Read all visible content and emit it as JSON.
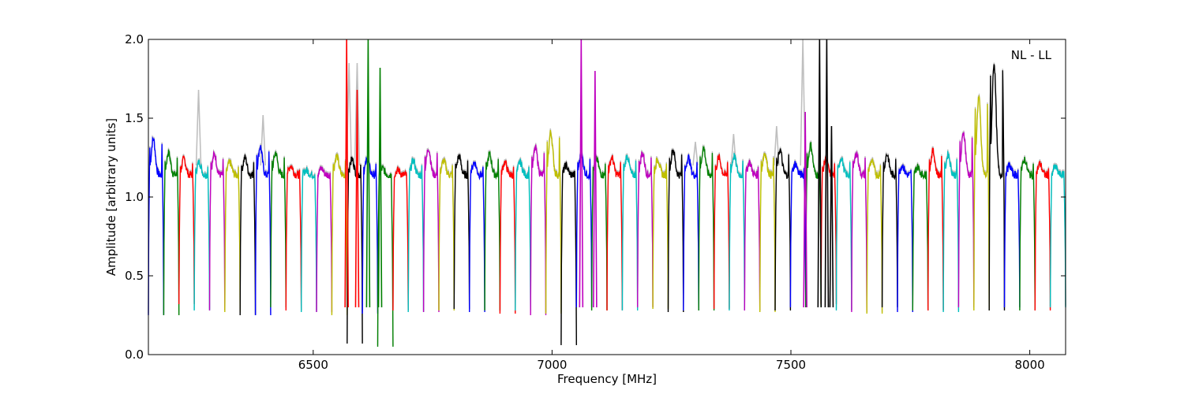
{
  "chart_data": {
    "type": "line",
    "title": "",
    "xlabel": "Frequency [MHz]",
    "ylabel": "Amplitude [arbitrary units]",
    "annotation": "NL - LL",
    "xlim": [
      6155,
      8075
    ],
    "ylim": [
      0.0,
      2.0
    ],
    "xticks": [
      6500,
      7000,
      7500,
      8000
    ],
    "xtick_labels": [
      "6500",
      "7000",
      "7500",
      "8000"
    ],
    "yticks": [
      0.0,
      0.5,
      1.0,
      1.5,
      2.0
    ],
    "ytick_labels": [
      "0.0",
      "0.5",
      "1.0",
      "1.5",
      "2.0"
    ],
    "grid": false,
    "legend": "none",
    "colors": [
      "#0000ff",
      "#008000",
      "#ff0000",
      "#00bfbf",
      "#bf00bf",
      "#bfbf00",
      "#000000"
    ],
    "background_color": "#bfbfbf",
    "channel_width_mhz": 32,
    "channel_starts_mhz": [
      6155,
      6187,
      6219,
      6251,
      6283,
      6315,
      6347,
      6379,
      6411,
      6443,
      6475,
      6507,
      6539,
      6571,
      6603,
      6635,
      6667,
      6699,
      6731,
      6763,
      6795,
      6827,
      6859,
      6891,
      6923,
      6955,
      6987,
      7019,
      7051,
      7083,
      7115,
      7147,
      7179,
      7211,
      7243,
      7275,
      7307,
      7339,
      7371,
      7403,
      7435,
      7467,
      7499,
      7531,
      7563,
      7595,
      7627,
      7659,
      7691,
      7723,
      7755,
      7787,
      7819,
      7851,
      7883,
      7915,
      7947,
      7979,
      8011,
      8043
    ],
    "channel_peaks": [
      1.37,
      1.28,
      1.24,
      1.22,
      1.27,
      1.22,
      1.25,
      1.32,
      1.28,
      1.2,
      1.17,
      1.18,
      1.26,
      1.24,
      1.24,
      1.18,
      1.17,
      1.23,
      1.31,
      1.23,
      1.26,
      1.22,
      1.27,
      1.22,
      1.22,
      1.31,
      1.41,
      1.2,
      1.27,
      1.24,
      1.25,
      1.26,
      1.28,
      1.24,
      1.3,
      1.25,
      1.31,
      1.25,
      1.26,
      1.22,
      1.28,
      1.3,
      1.21,
      1.33,
      1.24,
      1.25,
      1.28,
      1.23,
      1.27,
      1.2,
      1.19,
      1.29,
      1.27,
      1.41,
      1.63,
      1.85,
      1.2,
      1.24,
      1.21,
      1.19
    ],
    "channel_dips": [
      0.25,
      0.25,
      0.32,
      0.28,
      0.28,
      0.27,
      0.25,
      0.25,
      0.3,
      0.28,
      0.27,
      0.27,
      0.25,
      0.07,
      0.26,
      0.05,
      0.28,
      0.27,
      0.27,
      0.28,
      0.29,
      0.27,
      0.28,
      0.26,
      0.28,
      0.25,
      0.26,
      0.06,
      0.3,
      0.28,
      0.28,
      0.28,
      0.3,
      0.29,
      0.27,
      0.28,
      0.28,
      0.29,
      0.28,
      0.28,
      0.27,
      0.28,
      0.3,
      0.3,
      0.32,
      0.28,
      0.27,
      0.26,
      0.3,
      0.27,
      0.28,
      0.28,
      0.27,
      0.3,
      0.28,
      0.28,
      0.3,
      0.28,
      0.28,
      0.3
    ],
    "rfi_spikes": [
      {
        "x": 6570,
        "y": 2.0,
        "color": "#ff0000"
      },
      {
        "x": 6592,
        "y": 1.68,
        "color": "#ff0000"
      },
      {
        "x": 6615,
        "y": 2.0,
        "color": "#008000"
      },
      {
        "x": 6640,
        "y": 1.82,
        "color": "#008000"
      },
      {
        "x": 7061,
        "y": 2.0,
        "color": "#bf00bf"
      },
      {
        "x": 7090,
        "y": 1.8,
        "color": "#bf00bf"
      },
      {
        "x": 7530,
        "y": 1.54,
        "color": "#bf00bf"
      },
      {
        "x": 7560,
        "y": 2.0,
        "color": "#000000"
      },
      {
        "x": 7575,
        "y": 2.0,
        "color": "#000000"
      },
      {
        "x": 7585,
        "y": 1.45,
        "color": "#000000"
      }
    ],
    "background_spikes": [
      {
        "x": 6260,
        "y": 1.68
      },
      {
        "x": 6395,
        "y": 1.52
      },
      {
        "x": 6575,
        "y": 1.85
      },
      {
        "x": 6592,
        "y": 1.85
      },
      {
        "x": 7300,
        "y": 1.35
      },
      {
        "x": 7380,
        "y": 1.4
      },
      {
        "x": 7470,
        "y": 1.45
      },
      {
        "x": 7525,
        "y": 2.0
      }
    ]
  }
}
